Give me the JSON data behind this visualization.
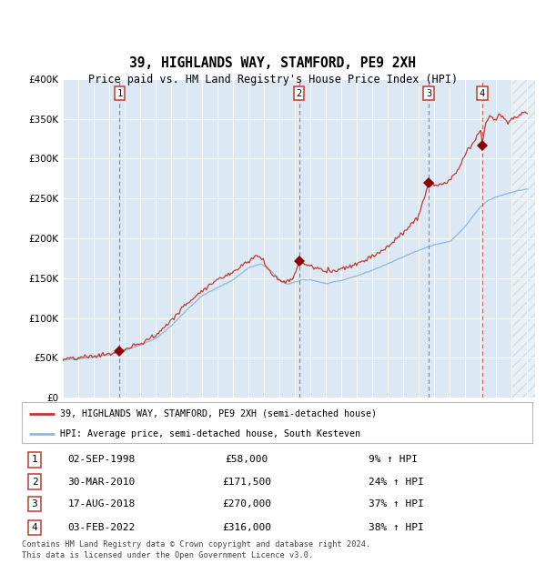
{
  "title": "39, HIGHLANDS WAY, STAMFORD, PE9 2XH",
  "subtitle": "Price paid vs. HM Land Registry's House Price Index (HPI)",
  "plot_bg_color": "#dce9f5",
  "hpi_line_color": "#90b8d8",
  "price_line_color": "#c0392b",
  "marker_color": "#8b0000",
  "ylim": [
    0,
    400000
  ],
  "yticks": [
    0,
    50000,
    100000,
    150000,
    200000,
    250000,
    300000,
    350000,
    400000
  ],
  "xlim_start": 1995.0,
  "xlim_end": 2025.5,
  "transactions": [
    {
      "num": 1,
      "date": "02-SEP-1998",
      "year": 1998.67,
      "price": 58000,
      "pct": "9%",
      "dir": "↑"
    },
    {
      "num": 2,
      "date": "30-MAR-2010",
      "year": 2010.25,
      "price": 171500,
      "pct": "24%",
      "dir": "↑"
    },
    {
      "num": 3,
      "date": "17-AUG-2018",
      "year": 2018.63,
      "price": 270000,
      "pct": "37%",
      "dir": "↑"
    },
    {
      "num": 4,
      "date": "03-FEB-2022",
      "year": 2022.09,
      "price": 316000,
      "pct": "38%",
      "dir": "↑"
    }
  ],
  "legend_line1": "39, HIGHLANDS WAY, STAMFORD, PE9 2XH (semi-detached house)",
  "legend_line2": "HPI: Average price, semi-detached house, South Kesteven",
  "footer1": "Contains HM Land Registry data © Crown copyright and database right 2024.",
  "footer2": "This data is licensed under the Open Government Licence v3.0.",
  "hatch_start": 2024.0,
  "hpi_anchors": [
    [
      1995.0,
      47000
    ],
    [
      1996.0,
      49000
    ],
    [
      1997.0,
      51000
    ],
    [
      1998.0,
      54000
    ],
    [
      1999.0,
      59000
    ],
    [
      2000.0,
      66000
    ],
    [
      2001.0,
      74000
    ],
    [
      2002.0,
      90000
    ],
    [
      2003.0,
      110000
    ],
    [
      2004.0,
      128000
    ],
    [
      2005.0,
      138000
    ],
    [
      2006.0,
      148000
    ],
    [
      2007.0,
      163000
    ],
    [
      2007.8,
      168000
    ],
    [
      2008.5,
      158000
    ],
    [
      2009.0,
      148000
    ],
    [
      2009.5,
      142000
    ],
    [
      2010.0,
      145000
    ],
    [
      2010.5,
      148000
    ],
    [
      2011.0,
      148000
    ],
    [
      2012.0,
      143000
    ],
    [
      2013.0,
      147000
    ],
    [
      2014.0,
      153000
    ],
    [
      2015.0,
      160000
    ],
    [
      2016.0,
      168000
    ],
    [
      2017.0,
      177000
    ],
    [
      2018.0,
      185000
    ],
    [
      2019.0,
      192000
    ],
    [
      2020.0,
      196000
    ],
    [
      2020.5,
      205000
    ],
    [
      2021.0,
      215000
    ],
    [
      2021.5,
      228000
    ],
    [
      2022.0,
      240000
    ],
    [
      2022.5,
      248000
    ],
    [
      2023.0,
      252000
    ],
    [
      2023.5,
      255000
    ],
    [
      2024.0,
      258000
    ],
    [
      2025.0,
      262000
    ]
  ],
  "red_anchors": [
    [
      1995.0,
      47500
    ],
    [
      1996.0,
      49500
    ],
    [
      1997.0,
      52000
    ],
    [
      1998.0,
      55000
    ],
    [
      1998.67,
      58000
    ],
    [
      1999.0,
      60000
    ],
    [
      2000.0,
      68000
    ],
    [
      2001.0,
      78000
    ],
    [
      2002.0,
      97000
    ],
    [
      2003.0,
      118000
    ],
    [
      2004.0,
      135000
    ],
    [
      2005.0,
      148000
    ],
    [
      2006.0,
      158000
    ],
    [
      2007.0,
      172000
    ],
    [
      2007.5,
      178000
    ],
    [
      2007.8,
      176000
    ],
    [
      2008.3,
      160000
    ],
    [
      2008.8,
      150000
    ],
    [
      2009.3,
      145000
    ],
    [
      2009.8,
      148000
    ],
    [
      2010.0,
      155000
    ],
    [
      2010.25,
      171500
    ],
    [
      2010.5,
      168000
    ],
    [
      2011.0,
      165000
    ],
    [
      2011.5,
      162000
    ],
    [
      2012.0,
      158000
    ],
    [
      2012.5,
      160000
    ],
    [
      2013.0,
      162000
    ],
    [
      2013.5,
      165000
    ],
    [
      2014.0,
      168000
    ],
    [
      2014.5,
      173000
    ],
    [
      2015.0,
      178000
    ],
    [
      2015.5,
      183000
    ],
    [
      2016.0,
      190000
    ],
    [
      2016.5,
      198000
    ],
    [
      2017.0,
      207000
    ],
    [
      2017.5,
      218000
    ],
    [
      2018.0,
      228000
    ],
    [
      2018.63,
      270000
    ],
    [
      2019.0,
      265000
    ],
    [
      2019.5,
      268000
    ],
    [
      2020.0,
      272000
    ],
    [
      2020.5,
      285000
    ],
    [
      2021.0,
      305000
    ],
    [
      2021.5,
      320000
    ],
    [
      2022.0,
      335000
    ],
    [
      2022.09,
      316000
    ],
    [
      2022.3,
      345000
    ],
    [
      2022.6,
      355000
    ],
    [
      2022.9,
      348000
    ],
    [
      2023.2,
      355000
    ],
    [
      2023.5,
      350000
    ],
    [
      2023.8,
      345000
    ],
    [
      2024.0,
      350000
    ],
    [
      2024.5,
      355000
    ],
    [
      2025.0,
      358000
    ]
  ]
}
